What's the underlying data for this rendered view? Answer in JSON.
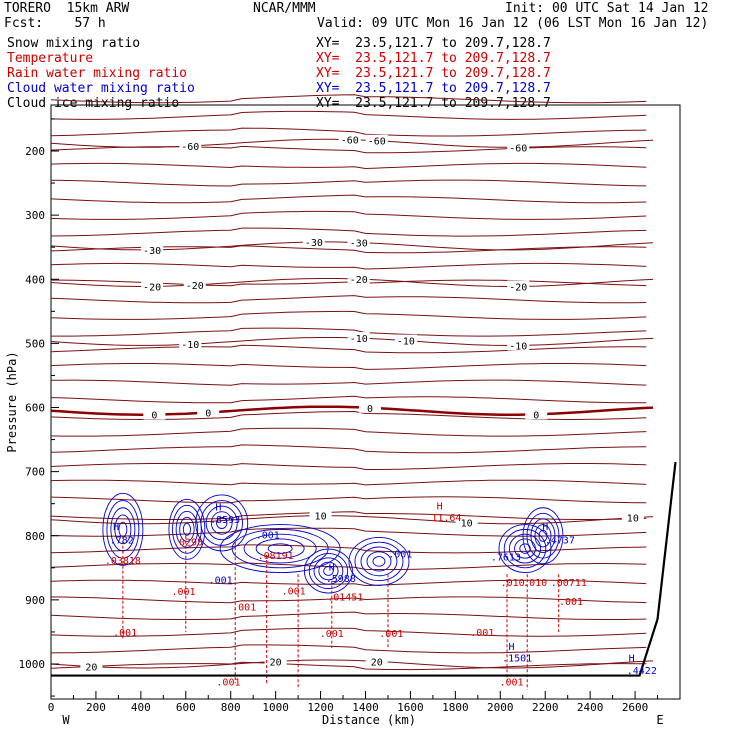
{
  "header": {
    "model": "TORERO  15km ARW",
    "org": "NCAR/MMM",
    "init": "Init: 00 UTC Sat 14 Jan 12",
    "fcst": "Fcst:    57 h",
    "valid": "Valid: 09 UTC Mon 16 Jan 12 (06 LST Mon 16 Jan 12)"
  },
  "fields": [
    {
      "name": "Snow mixing ratio",
      "xy": "XY=  23.5,121.7 to 209.7,128.7",
      "color": "#000000"
    },
    {
      "name": "Temperature",
      "xy": "XY=  23.5,121.7 to 209.7,128.7",
      "color": "#cc0000"
    },
    {
      "name": "Rain water mixing ratio",
      "xy": "XY=  23.5,121.7 to 209.7,128.7",
      "color": "#cc0000"
    },
    {
      "name": "Cloud water mixing ratio",
      "xy": "XY=  23.5,121.7 to 209.7,128.7",
      "color": "#0000cc"
    },
    {
      "name": "Cloud ice mixing ratio",
      "xy": "XY=  23.5,121.7 to 209.7,128.7",
      "color": "#000000"
    }
  ],
  "chart_data": {
    "type": "cross-section contour",
    "xlabel": "Distance (km)",
    "ylabel": "Pressure (hPa)",
    "xlim": [
      0,
      2800
    ],
    "ylim": [
      1050,
      100
    ],
    "x_ticks": [
      0,
      200,
      400,
      600,
      800,
      1000,
      1200,
      1400,
      1600,
      1800,
      2000,
      2200,
      2400,
      2600
    ],
    "y_ticks": [
      200,
      300,
      400,
      500,
      600,
      700,
      800,
      900,
      1000
    ],
    "left_end": "W",
    "right_end": "E",
    "temperature_isotherms": [
      {
        "label": "-60",
        "p": 188,
        "labels_x": [
          620,
          1330,
          1450,
          2080
        ]
      },
      {
        "label": "-30",
        "p": 348,
        "labels_x": [
          450,
          1170,
          1370
        ]
      },
      {
        "label": "-20",
        "p": 405,
        "labels_x": [
          450,
          640,
          1370,
          2080
        ]
      },
      {
        "label": "-10",
        "p": 497,
        "labels_x": [
          620,
          1370,
          1580,
          2080
        ]
      },
      {
        "label": "0",
        "p": 605,
        "labels_x": [
          460,
          700,
          1420,
          2160
        ]
      },
      {
        "label": "10",
        "p": 775,
        "labels_x": [
          1200,
          1850,
          2590
        ]
      },
      {
        "label": "20",
        "p": 1000,
        "labels_x": [
          180,
          1000,
          1450
        ]
      }
    ],
    "extrema_labels": [
      {
        "text": "H",
        "x": 290,
        "p": 785,
        "color": "#0000cc"
      },
      {
        "text": ".782",
        "x": 315,
        "p": 806,
        "color": "#0000cc"
      },
      {
        "text": ".03818",
        "x": 320,
        "p": 838,
        "color": "#cc0000"
      },
      {
        "text": ".0295",
        "x": 610,
        "p": 809,
        "color": "#cc0000"
      },
      {
        "text": "H",
        "x": 745,
        "p": 754,
        "color": "#0000cc"
      },
      {
        "text": ".8593",
        "x": 775,
        "p": 774,
        "color": "#0000cc"
      },
      {
        "text": ".001",
        "x": 965,
        "p": 798,
        "color": "#0000cc"
      },
      {
        "text": ".08191",
        "x": 1000,
        "p": 830,
        "color": "#cc0000"
      },
      {
        "text": "H",
        "x": 1250,
        "p": 848,
        "color": "#0000cc"
      },
      {
        "text": ".5988",
        "x": 1290,
        "p": 866,
        "color": "#0000cc"
      },
      {
        "text": ".01451",
        "x": 1310,
        "p": 895,
        "color": "#cc0000"
      },
      {
        "text": ".001",
        "x": 1555,
        "p": 828,
        "color": "#0000cc"
      },
      {
        "text": "H",
        "x": 1730,
        "p": 753,
        "color": "#cc0000"
      },
      {
        "text": "11.64",
        "x": 1760,
        "p": 771,
        "color": "#cc0000"
      },
      {
        "text": ".7613",
        "x": 2025,
        "p": 832,
        "color": "#0000cc"
      },
      {
        "text": ".4737",
        "x": 2265,
        "p": 806,
        "color": "#0000cc"
      },
      {
        "text": "H",
        "x": 2200,
        "p": 785,
        "color": "#0000cc"
      },
      {
        "text": ".010",
        "x": 2055,
        "p": 872,
        "color": "#cc0000"
      },
      {
        "text": ".010",
        "x": 2155,
        "p": 872,
        "color": "#cc0000"
      },
      {
        "text": ".00711",
        "x": 2305,
        "p": 872,
        "color": "#cc0000"
      },
      {
        "text": ".001",
        "x": 330,
        "p": 950,
        "color": "#cc0000"
      },
      {
        "text": ".001",
        "x": 590,
        "p": 886,
        "color": "#cc0000"
      },
      {
        "text": ".001",
        "x": 755,
        "p": 868,
        "color": "#0000cc"
      },
      {
        "text": ".001",
        "x": 860,
        "p": 910,
        "color": "#cc0000"
      },
      {
        "text": ".001",
        "x": 1080,
        "p": 885,
        "color": "#cc0000"
      },
      {
        "text": ".001",
        "x": 1250,
        "p": 952,
        "color": "#cc0000"
      },
      {
        "text": ".001",
        "x": 1515,
        "p": 952,
        "color": "#cc0000"
      },
      {
        "text": ".001",
        "x": 1920,
        "p": 950,
        "color": "#cc0000"
      },
      {
        "text": ".001",
        "x": 2315,
        "p": 902,
        "color": "#cc0000"
      },
      {
        "text": ".001",
        "x": 790,
        "p": 1027,
        "color": "#cc0000"
      },
      {
        "text": ".001",
        "x": 2050,
        "p": 1027,
        "color": "#cc0000"
      },
      {
        "text": "H",
        "x": 2050,
        "p": 972,
        "color": "#0000cc"
      },
      {
        "text": ".1501",
        "x": 2075,
        "p": 990,
        "color": "#0000cc"
      },
      {
        "text": "H",
        "x": 2585,
        "p": 990,
        "color": "#0000cc"
      },
      {
        "text": ".4422",
        "x": 2630,
        "p": 1009,
        "color": "#0000cc"
      }
    ]
  },
  "colors": {
    "temperature": "#7a1010",
    "freezing": "#8b0000",
    "cloud_water": "#0000cc",
    "rain": "#cc0000",
    "terrain": "#000000"
  }
}
